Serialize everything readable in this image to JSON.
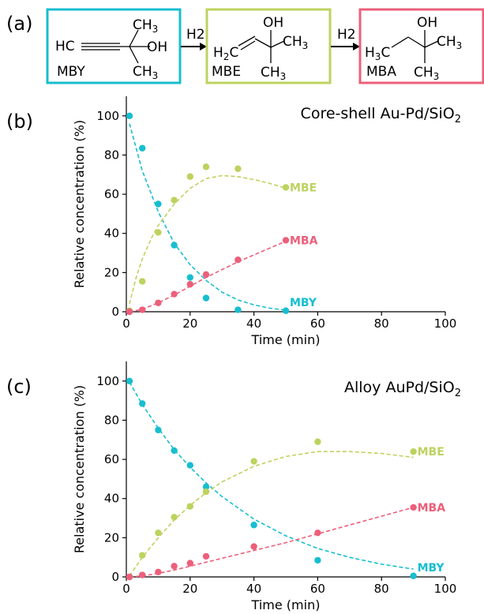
{
  "colors": {
    "MBY": "#17becf",
    "MBE": "#bcd35f",
    "MBA": "#ec5f7b"
  },
  "panel_a": {
    "label": "(a)",
    "arrow_label_1": "H2",
    "arrow_label_2": "H2",
    "boxes": [
      {
        "name": "MBY",
        "label": "MBY"
      },
      {
        "name": "MBE",
        "label": "MBE"
      },
      {
        "name": "MBA",
        "label": "MBA"
      }
    ]
  },
  "chart_data": [
    {
      "panel_label": "(b)",
      "type": "scatter",
      "title": "Core-shell Au-Pd/SiO2",
      "xlabel": "Time (min)",
      "ylabel": "Relative concentration (%)",
      "xlim": [
        0,
        100
      ],
      "ylim": [
        0,
        110
      ],
      "xticks": [
        0,
        20,
        40,
        60,
        80,
        100
      ],
      "yticks": [
        0,
        20,
        40,
        60,
        80,
        100
      ],
      "grid": false,
      "series": [
        {
          "name": "MBY",
          "x": [
            1,
            5,
            10,
            15,
            20,
            25,
            35,
            50
          ],
          "y": [
            100,
            83.5,
            55,
            34,
            17.5,
            7,
            1,
            0.5
          ],
          "fit_x": [
            1,
            5,
            10,
            15,
            20,
            25,
            30,
            35,
            40,
            45,
            50
          ],
          "fit_y": [
            96,
            72,
            51,
            35,
            24,
            16,
            10,
            6,
            3.5,
            1.8,
            0.8
          ]
        },
        {
          "name": "MBE",
          "x": [
            1,
            5,
            10,
            15,
            20,
            25,
            35,
            50
          ],
          "y": [
            0.5,
            15.5,
            40.5,
            57,
            69,
            74,
            73,
            63.5
          ],
          "fit_x": [
            1,
            3,
            5,
            8,
            10,
            15,
            20,
            25,
            30,
            35,
            40,
            45,
            50
          ],
          "fit_y": [
            4,
            17,
            27,
            38,
            44,
            55,
            63,
            68,
            69.5,
            69,
            67.5,
            65.5,
            63
          ]
        },
        {
          "name": "MBA",
          "x": [
            1,
            5,
            10,
            15,
            20,
            25,
            35,
            50
          ],
          "y": [
            0,
            1,
            4.5,
            9,
            14,
            19,
            26.5,
            36.5
          ],
          "fit_x": [
            1,
            5,
            10,
            15,
            20,
            25,
            30,
            35,
            40,
            45,
            50
          ],
          "fit_y": [
            0,
            1.2,
            4.5,
            8.5,
            13,
            17.5,
            21.5,
            25.5,
            29,
            32.5,
            36
          ]
        }
      ]
    },
    {
      "panel_label": "(c)",
      "type": "scatter",
      "title": "Alloy AuPd/SiO2",
      "xlabel": "Time (min)",
      "ylabel": "Relative concentration (%)",
      "xlim": [
        0,
        100
      ],
      "ylim": [
        0,
        110
      ],
      "xticks": [
        0,
        20,
        40,
        60,
        80,
        100
      ],
      "yticks": [
        0,
        20,
        40,
        60,
        80,
        100
      ],
      "grid": false,
      "series": [
        {
          "name": "MBY",
          "x": [
            1,
            5,
            10,
            15,
            20,
            25,
            40,
            60,
            90
          ],
          "y": [
            100,
            88.5,
            75,
            64.5,
            57,
            46,
            26.5,
            8.5,
            0.5
          ],
          "fit_x": [
            1,
            5,
            10,
            15,
            20,
            25,
            30,
            40,
            50,
            60,
            70,
            80,
            90
          ],
          "fit_y": [
            99.5,
            88,
            76,
            65,
            56,
            48,
            41,
            29.5,
            21,
            14.5,
            10,
            6.5,
            4
          ]
        },
        {
          "name": "MBE",
          "x": [
            1,
            5,
            10,
            15,
            20,
            25,
            40,
            60,
            90
          ],
          "y": [
            0,
            11,
            22.5,
            30.5,
            36,
            43.5,
            59,
            69,
            64
          ],
          "fit_x": [
            1,
            5,
            10,
            15,
            20,
            25,
            30,
            40,
            50,
            60,
            70,
            80,
            90
          ],
          "fit_y": [
            0.5,
            10,
            20,
            29,
            36.5,
            43,
            48.5,
            56.5,
            61.5,
            64,
            64,
            63,
            61
          ]
        },
        {
          "name": "MBA",
          "x": [
            1,
            5,
            10,
            15,
            20,
            25,
            40,
            60,
            90
          ],
          "y": [
            0,
            1,
            2.5,
            5.5,
            7,
            10.5,
            15.5,
            22.5,
            35.5
          ],
          "fit_x": [
            1,
            5,
            10,
            15,
            20,
            25,
            30,
            40,
            50,
            60,
            70,
            80,
            90
          ],
          "fit_y": [
            0,
            0.5,
            1.8,
            3.5,
            5.5,
            7.5,
            9.5,
            13.5,
            17.5,
            22,
            26.5,
            31,
            35.5
          ]
        }
      ]
    }
  ]
}
